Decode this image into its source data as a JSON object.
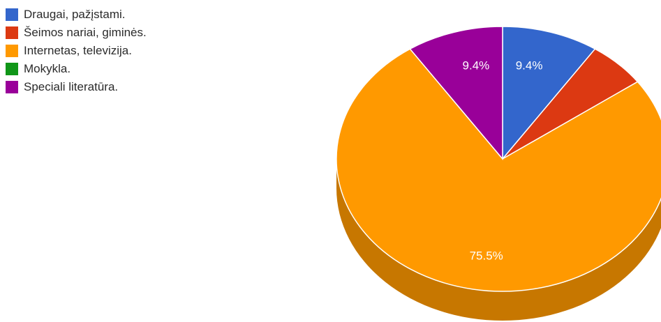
{
  "chart_data": {
    "type": "pie",
    "categories": [
      "Draugai, pažįstami.",
      "Šeimos nariai, giminės.",
      "Internetas, televizija.",
      "Mokykla.",
      "Speciali literatūra."
    ],
    "values": [
      9.4,
      5.7,
      75.5,
      0.0,
      9.4
    ],
    "colors": [
      "#3366cc",
      "#dc3912",
      "#ff9900",
      "#109618",
      "#990099"
    ],
    "data_labels": [
      "9.4%",
      "",
      "75.5%",
      "",
      "9.4%"
    ],
    "legend_position": "top-left",
    "three_d": true
  }
}
